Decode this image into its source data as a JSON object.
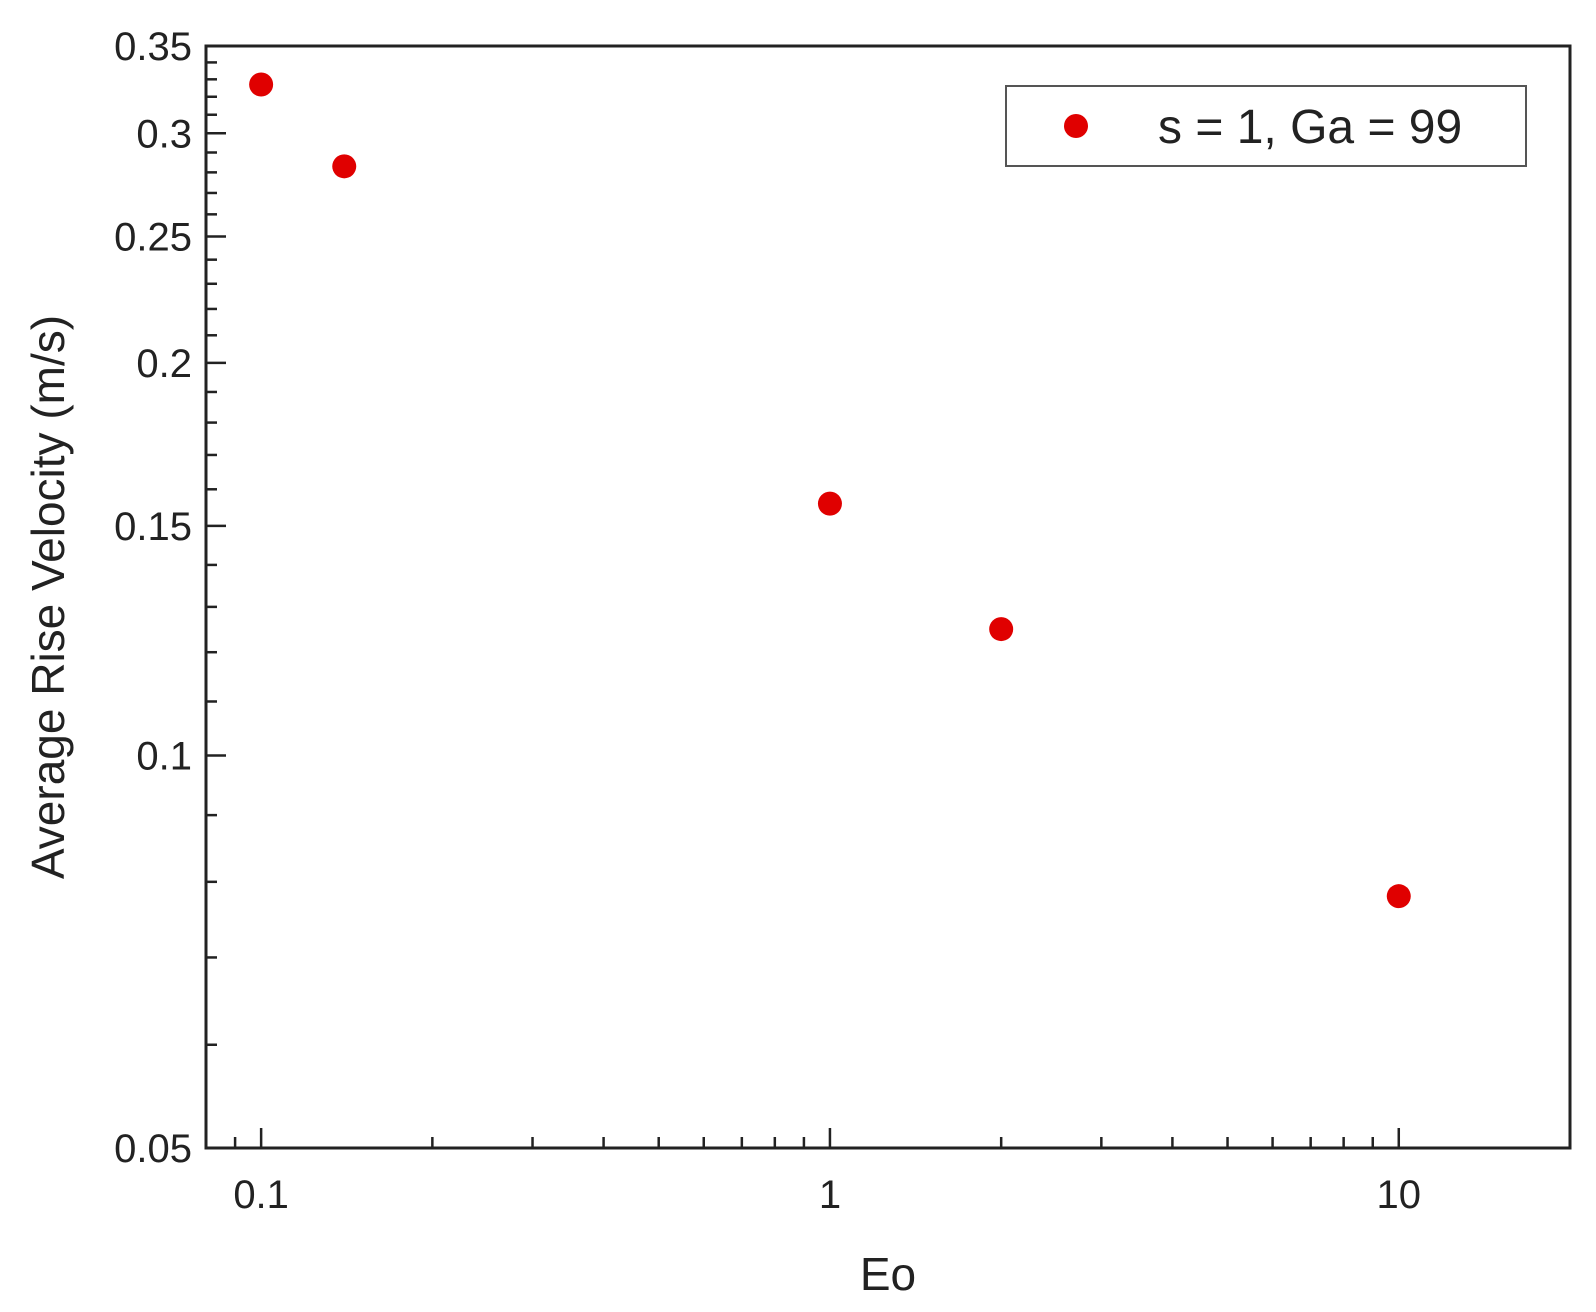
{
  "chart_data": {
    "type": "scatter",
    "title": "",
    "xlabel": "Eo",
    "ylabel": "Average Rise Velocity (m/s)",
    "x_scale": "log",
    "y_scale": "log",
    "xlim": [
      0.08,
      20
    ],
    "ylim": [
      0.05,
      0.35
    ],
    "x_ticks": [
      {
        "value": 0.1,
        "label": "0.1"
      },
      {
        "value": 1,
        "label": "1"
      },
      {
        "value": 10,
        "label": "10"
      }
    ],
    "y_ticks": [
      {
        "value": 0.05,
        "label": "0.05"
      },
      {
        "value": 0.1,
        "label": "0.1"
      },
      {
        "value": 0.15,
        "label": "0.15"
      },
      {
        "value": 0.2,
        "label": "0.2"
      },
      {
        "value": 0.25,
        "label": "0.25"
      },
      {
        "value": 0.3,
        "label": "0.3"
      },
      {
        "value": 0.35,
        "label": "0.35"
      }
    ],
    "grid": false,
    "legend_position": "top-right",
    "series": [
      {
        "name": "s = 1, Ga = 99",
        "color": "#e00000",
        "marker": "circle",
        "points": [
          {
            "x": 0.1,
            "y": 0.327
          },
          {
            "x": 0.14,
            "y": 0.283
          },
          {
            "x": 1,
            "y": 0.156
          },
          {
            "x": 2,
            "y": 0.125
          },
          {
            "x": 10,
            "y": 0.078
          }
        ]
      }
    ]
  }
}
